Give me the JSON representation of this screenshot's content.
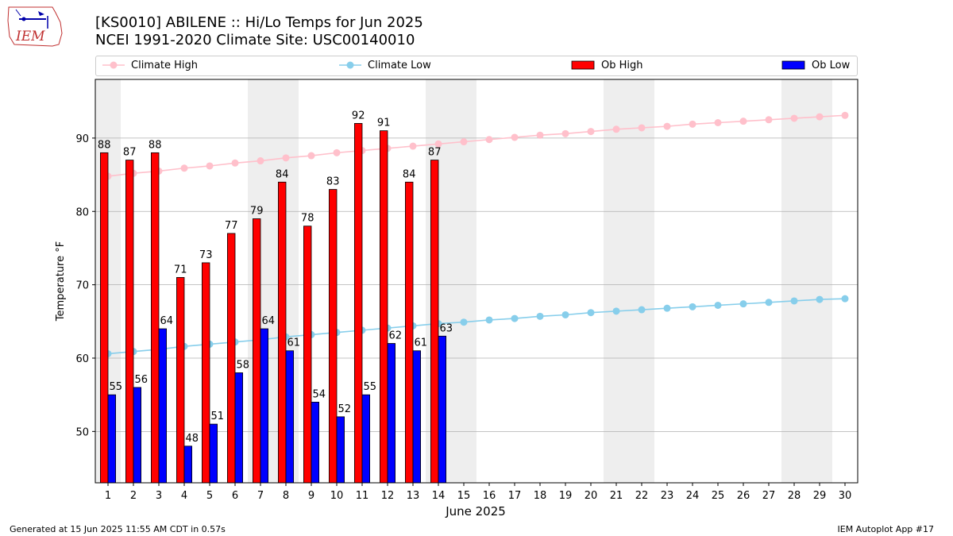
{
  "header": {
    "logo_text": "IEM",
    "title_line1": "[KS0010] ABILENE :: Hi/Lo Temps for Jun 2025",
    "title_line2": "NCEI 1991-2020 Climate Site: USC00140010"
  },
  "footer": {
    "generated": "Generated at 15 Jun 2025 11:55 AM CDT in 0.57s",
    "app": "IEM Autoplot App #17"
  },
  "colors": {
    "climate_high": "#ffc0cb",
    "climate_low": "#87ceeb",
    "ob_high": "#ff0000",
    "ob_low": "#0000ff",
    "weekend_shade": "#eeeeee",
    "grid": "#b0b0b0"
  },
  "chart_data": {
    "type": "bar",
    "xlabel": "June 2025",
    "ylabel": "Temperature °F",
    "xlim": [
      0.5,
      30.5
    ],
    "ylim": [
      43,
      98
    ],
    "yticks": [
      50,
      60,
      70,
      80,
      90
    ],
    "grid": "y",
    "legend": "top",
    "days": [
      1,
      2,
      3,
      4,
      5,
      6,
      7,
      8,
      9,
      10,
      11,
      12,
      13,
      14,
      15,
      16,
      17,
      18,
      19,
      20,
      21,
      22,
      23,
      24,
      25,
      26,
      27,
      28,
      29,
      30
    ],
    "shaded_weekend_days": [
      1,
      7,
      8,
      14,
      15,
      21,
      22,
      28,
      29
    ],
    "series": [
      {
        "name": "Climate High",
        "kind": "line",
        "values": [
          84.8,
          85.2,
          85.5,
          85.9,
          86.2,
          86.6,
          86.9,
          87.3,
          87.6,
          88.0,
          88.3,
          88.6,
          88.9,
          89.2,
          89.5,
          89.8,
          90.1,
          90.4,
          90.6,
          90.9,
          91.2,
          91.4,
          91.6,
          91.9,
          92.1,
          92.3,
          92.5,
          92.7,
          92.9,
          93.1
        ]
      },
      {
        "name": "Climate Low",
        "kind": "line",
        "values": [
          60.6,
          60.9,
          61.2,
          61.6,
          61.9,
          62.2,
          62.5,
          62.9,
          63.2,
          63.5,
          63.8,
          64.1,
          64.4,
          64.7,
          64.9,
          65.2,
          65.4,
          65.7,
          65.9,
          66.2,
          66.4,
          66.6,
          66.8,
          67.0,
          67.2,
          67.4,
          67.6,
          67.8,
          68.0,
          68.1
        ]
      },
      {
        "name": "Ob High",
        "kind": "bar",
        "values": [
          88,
          87,
          88,
          71,
          73,
          77,
          79,
          84,
          78,
          83,
          92,
          91,
          84,
          87
        ]
      },
      {
        "name": "Ob Low",
        "kind": "bar",
        "values": [
          55,
          56,
          64,
          48,
          51,
          58,
          64,
          61,
          54,
          52,
          55,
          62,
          61,
          63
        ]
      }
    ]
  }
}
